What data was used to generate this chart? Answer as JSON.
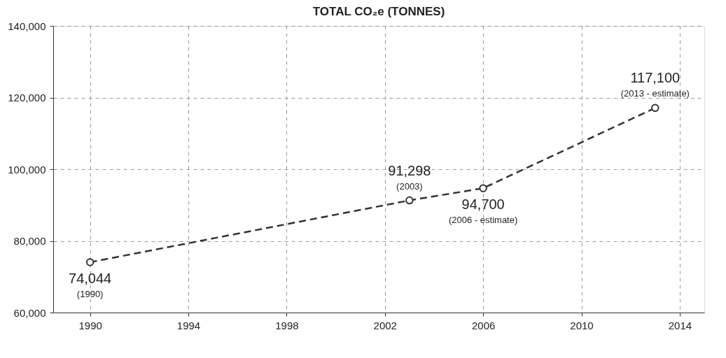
{
  "chart_data": {
    "type": "line",
    "title": "TOTAL CO₂e (TONNES)",
    "x": [
      1990,
      2003,
      2006,
      2013
    ],
    "series": [
      {
        "color": "#333333",
        "values": [
          74044,
          91298,
          94700,
          117100
        ],
        "value_labels": [
          "74,044",
          "91,298",
          "94,700",
          "117,100"
        ]
      }
    ],
    "annotations": [
      {
        "text": "(1990)",
        "x": 1990,
        "y": 74044
      },
      {
        "text": "(2003)",
        "x": 2003,
        "y": 91298
      },
      {
        "text": "(2006 - estimate)",
        "x": 2006,
        "y": 94700
      },
      {
        "text": "(2013 - estimate)",
        "x": 2013,
        "y": 117100
      }
    ],
    "xlim": [
      1988.5,
      2015
    ],
    "xticks": [
      1990,
      1994,
      1998,
      2002,
      2006,
      2010,
      2014
    ],
    "ylim": [
      60000,
      140000
    ],
    "yticks": [
      {
        "value": 60000,
        "label": "60,000"
      },
      {
        "value": 80000,
        "label": "80,000"
      },
      {
        "value": 100000,
        "label": "100,000"
      },
      {
        "value": 120000,
        "label": "120,000"
      },
      {
        "value": 140000,
        "label": "140,000"
      }
    ],
    "grid": true,
    "marker": "circle",
    "line_style": "dashed"
  }
}
